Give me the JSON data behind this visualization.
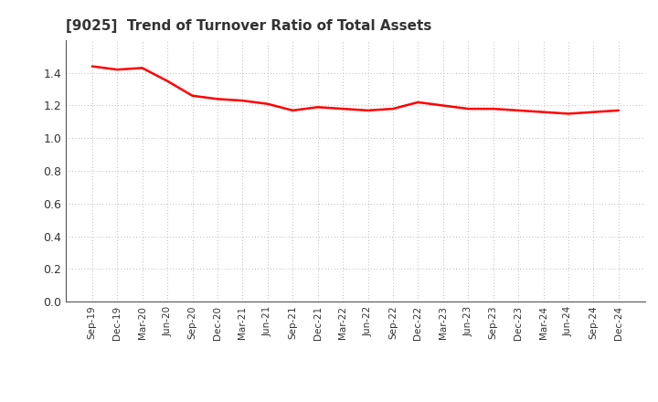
{
  "title": "[9025]  Trend of Turnover Ratio of Total Assets",
  "title_fontsize": 11,
  "title_color": "#333333",
  "line_color": "#FF0000",
  "line_width": 1.8,
  "background_color": "#FFFFFF",
  "grid_color": "#999999",
  "ylim": [
    0.0,
    1.6
  ],
  "yticks": [
    0.0,
    0.2,
    0.4,
    0.6,
    0.8,
    1.0,
    1.2,
    1.4
  ],
  "labels": [
    "Sep-19",
    "Dec-19",
    "Mar-20",
    "Jun-20",
    "Sep-20",
    "Dec-20",
    "Mar-21",
    "Jun-21",
    "Sep-21",
    "Dec-21",
    "Mar-22",
    "Jun-22",
    "Sep-22",
    "Dec-22",
    "Mar-23",
    "Jun-23",
    "Sep-23",
    "Dec-23",
    "Mar-24",
    "Jun-24",
    "Sep-24",
    "Dec-24"
  ],
  "values": [
    1.44,
    1.42,
    1.43,
    1.35,
    1.26,
    1.24,
    1.23,
    1.21,
    1.17,
    1.19,
    1.18,
    1.17,
    1.18,
    1.22,
    1.2,
    1.18,
    1.18,
    1.17,
    1.16,
    1.15,
    1.16,
    1.17
  ]
}
